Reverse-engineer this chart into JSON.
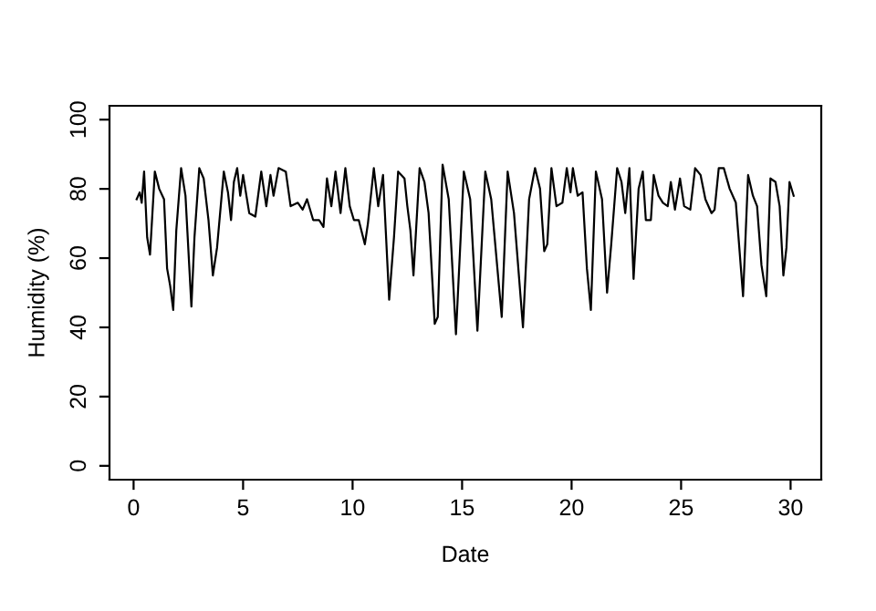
{
  "chart_data": {
    "type": "line",
    "xlabel": "Date",
    "ylabel": "Humidity (%)",
    "x": [
      0.14,
      0.28,
      0.37,
      0.48,
      0.62,
      0.75,
      0.97,
      1.17,
      1.39,
      1.53,
      1.67,
      1.81,
      1.95,
      2.17,
      2.37,
      2.64,
      2.78,
      3.0,
      3.2,
      3.42,
      3.62,
      3.81,
      4.12,
      4.31,
      4.45,
      4.58,
      4.73,
      4.87,
      5.0,
      5.28,
      5.56,
      5.83,
      6.06,
      6.25,
      6.39,
      6.62,
      6.95,
      7.17,
      7.5,
      7.72,
      7.92,
      8.2,
      8.47,
      8.67,
      8.83,
      9.03,
      9.22,
      9.45,
      9.67,
      9.87,
      10.06,
      10.28,
      10.56,
      10.7,
      10.97,
      11.17,
      11.39,
      11.67,
      11.89,
      12.08,
      12.37,
      12.5,
      12.64,
      12.78,
      13.06,
      13.28,
      13.47,
      13.75,
      13.89,
      14.11,
      14.39,
      14.72,
      15.08,
      15.37,
      15.7,
      16.06,
      16.33,
      16.81,
      17.08,
      17.37,
      17.78,
      18.06,
      18.33,
      18.56,
      18.75,
      18.89,
      19.08,
      19.31,
      19.58,
      19.78,
      19.95,
      20.06,
      20.28,
      20.5,
      20.7,
      20.88,
      21.11,
      21.39,
      21.62,
      21.81,
      22.08,
      22.28,
      22.45,
      22.64,
      22.83,
      23.06,
      23.25,
      23.39,
      23.62,
      23.75,
      23.97,
      24.17,
      24.39,
      24.53,
      24.72,
      24.95,
      25.14,
      25.42,
      25.64,
      25.89,
      26.11,
      26.39,
      26.53,
      26.72,
      26.95,
      27.22,
      27.5,
      27.83,
      28.06,
      28.28,
      28.47,
      28.67,
      28.89,
      29.08,
      29.31,
      29.5,
      29.67,
      29.81,
      29.95,
      30.14
    ],
    "values": [
      77,
      79,
      76,
      85,
      66,
      61,
      85,
      80,
      77,
      57,
      52,
      45,
      68,
      86,
      78,
      46,
      66,
      86,
      83,
      71,
      55,
      63,
      85,
      79,
      71,
      82,
      86,
      78,
      84,
      73,
      72,
      85,
      75,
      84,
      78,
      86,
      85,
      75,
      76,
      74,
      77,
      71,
      71,
      69,
      83,
      75,
      85,
      73,
      86,
      75,
      71,
      71,
      64,
      70,
      86,
      75,
      84,
      48,
      66,
      85,
      83,
      75,
      68,
      55,
      86,
      82,
      73,
      41,
      43,
      87,
      77,
      38,
      85,
      77,
      39,
      85,
      77,
      43,
      85,
      73,
      40,
      77,
      86,
      80,
      62,
      64,
      86,
      75,
      76,
      86,
      79,
      86,
      78,
      79,
      57,
      45,
      85,
      77,
      50,
      64,
      86,
      82,
      73,
      86,
      54,
      80,
      85,
      71,
      71,
      84,
      78,
      76,
      75,
      82,
      74,
      83,
      75,
      74,
      86,
      84,
      77,
      73,
      74,
      86,
      86,
      80,
      76,
      49,
      84,
      78,
      75,
      58,
      49,
      83,
      82,
      75,
      55,
      63,
      82,
      78
    ],
    "color": "#000000",
    "xlim": [
      -1.1,
      31.4
    ],
    "ylim": [
      -4,
      104
    ],
    "xticks": [
      0,
      5,
      10,
      15,
      20,
      25,
      30
    ],
    "yticks": [
      0,
      20,
      40,
      60,
      80,
      100
    ],
    "grid": false,
    "legend": false
  }
}
